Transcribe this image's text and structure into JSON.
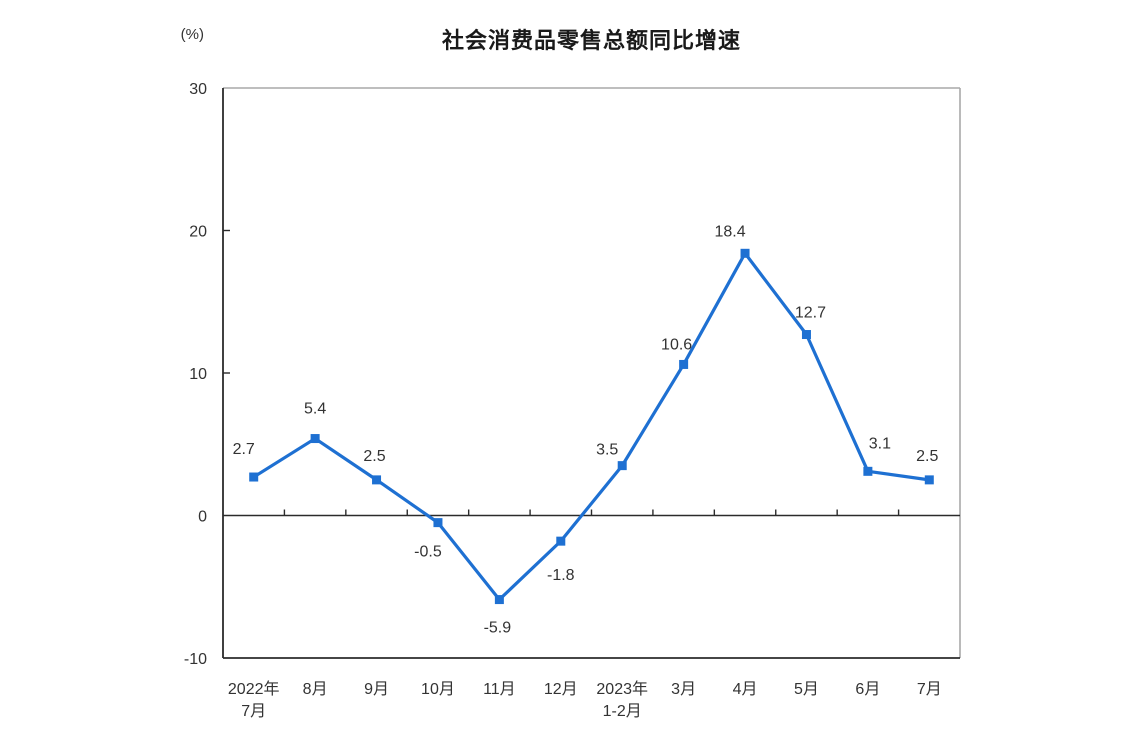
{
  "chart_data": {
    "type": "line",
    "title": "社会消费品零售总额同比增速",
    "ylabel": "(%)",
    "xlabel": "",
    "categories": [
      "2022年\n7月",
      "8月",
      "9月",
      "10月",
      "11月",
      "12月",
      "2023年\n1-2月",
      "3月",
      "4月",
      "5月",
      "6月",
      "7月"
    ],
    "values": [
      2.7,
      5.4,
      2.5,
      -0.5,
      -5.9,
      -1.8,
      3.5,
      10.6,
      18.4,
      12.7,
      3.1,
      2.5
    ],
    "data_labels": [
      "2.7",
      "5.4",
      "2.5",
      "-0.5",
      "-5.9",
      "-1.8",
      "3.5",
      "10.6",
      "18.4",
      "12.7",
      "3.1",
      "2.5"
    ],
    "ylim": [
      -10,
      30
    ],
    "yticks": [
      30,
      20,
      10,
      0,
      -10
    ],
    "grid": false,
    "legend": "none",
    "zero_baseline": true,
    "marker": "square",
    "line_color": "#1E70D2",
    "marker_color": "#1E70D2",
    "axis_color": "#2b2b2b",
    "frame_color": "#a9a9a9",
    "text_color": "#333333",
    "label_offsets": {
      "dx": [
        -10,
        0,
        -2,
        -10,
        -2,
        0,
        -15,
        -7,
        -15,
        4,
        12,
        -2
      ],
      "dy": [
        -23,
        -25,
        -19,
        34,
        33,
        39,
        -11,
        -15,
        -17,
        -17,
        -23,
        -19
      ]
    }
  }
}
